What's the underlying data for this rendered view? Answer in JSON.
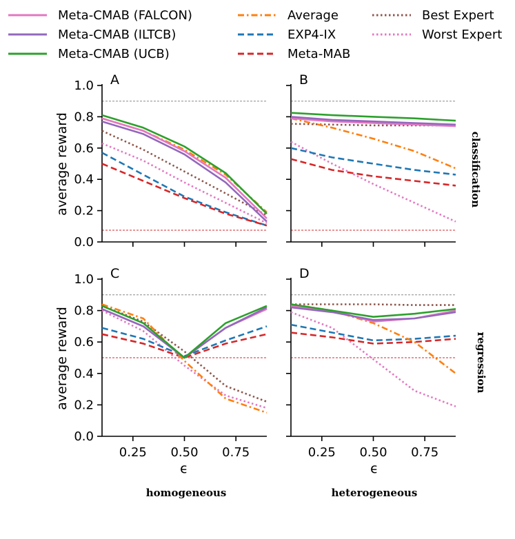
{
  "legend": {
    "items": [
      {
        "label": "Meta-CMAB (FALCON)",
        "color": "#e377c2",
        "dash": "solid"
      },
      {
        "label": "Meta-CMAB (ILTCB)",
        "color": "#9467bd",
        "dash": "solid"
      },
      {
        "label": "Meta-CMAB (UCB)",
        "color": "#2ca02c",
        "dash": "solid"
      },
      {
        "label": "Average",
        "color": "#ff7f0e",
        "dash": "dashdot"
      },
      {
        "label": "EXP4-IX",
        "color": "#1f77b4",
        "dash": "dashed"
      },
      {
        "label": "Meta-MAB",
        "color": "#d62728",
        "dash": "dashed"
      },
      {
        "label": "Best Expert",
        "color": "#8c564b",
        "dash": "dotted"
      },
      {
        "label": "Worst Expert",
        "color": "#e377c2",
        "dash": "dotted"
      }
    ]
  },
  "labels": {
    "ylabel": "average reward",
    "xlabel": "ϵ",
    "row_top": "classification",
    "row_bottom": "regression",
    "col_left": "homogeneous",
    "col_right": "heterogeneous"
  },
  "chart_data": {
    "type": "line",
    "x": [
      0.1,
      0.3,
      0.5,
      0.7,
      0.9
    ],
    "xticks": [
      "0.25",
      "0.50",
      "0.75"
    ],
    "yticks": [
      "0.0",
      "0.2",
      "0.4",
      "0.6",
      "0.8",
      "1.0"
    ],
    "ylim": [
      0,
      1
    ],
    "xlim": [
      0.1,
      0.9
    ],
    "panels": [
      {
        "letter": "A",
        "upper_ref": 0.9,
        "lower_ref": 0.075,
        "series": [
          {
            "name": "Meta-CMAB (FALCON)",
            "values": [
              0.79,
              0.71,
              0.58,
              0.41,
              0.15
            ]
          },
          {
            "name": "Meta-CMAB (ILTCB)",
            "values": [
              0.77,
              0.69,
              0.56,
              0.38,
              0.13
            ]
          },
          {
            "name": "Meta-CMAB (UCB)",
            "values": [
              0.81,
              0.73,
              0.61,
              0.44,
              0.18
            ]
          },
          {
            "name": "Average",
            "values": [
              0.79,
              0.71,
              0.59,
              0.43,
              0.19
            ]
          },
          {
            "name": "EXP4-IX",
            "values": [
              0.57,
              0.43,
              0.29,
              0.19,
              0.105
            ]
          },
          {
            "name": "Meta-MAB",
            "values": [
              0.5,
              0.39,
              0.28,
              0.18,
              0.105
            ]
          },
          {
            "name": "Best Expert",
            "values": [
              0.71,
              0.59,
              0.45,
              0.31,
              0.17
            ]
          },
          {
            "name": "Worst Expert",
            "values": [
              0.63,
              0.52,
              0.38,
              0.25,
              0.12
            ]
          }
        ]
      },
      {
        "letter": "B",
        "upper_ref": 0.9,
        "lower_ref": 0.075,
        "series": [
          {
            "name": "Meta-CMAB (FALCON)",
            "values": [
              0.79,
              0.77,
              0.76,
              0.75,
              0.74
            ]
          },
          {
            "name": "Meta-CMAB (ILTCB)",
            "values": [
              0.8,
              0.78,
              0.77,
              0.76,
              0.75
            ]
          },
          {
            "name": "Meta-CMAB (UCB)",
            "values": [
              0.825,
              0.81,
              0.8,
              0.79,
              0.775
            ]
          },
          {
            "name": "Average",
            "values": [
              0.79,
              0.73,
              0.66,
              0.58,
              0.47
            ]
          },
          {
            "name": "EXP4-IX",
            "values": [
              0.6,
              0.54,
              0.5,
              0.46,
              0.43
            ]
          },
          {
            "name": "Meta-MAB",
            "values": [
              0.53,
              0.46,
              0.42,
              0.39,
              0.36
            ]
          },
          {
            "name": "Best Expert",
            "values": [
              0.755,
              0.75,
              0.745,
              0.745,
              0.745
            ]
          },
          {
            "name": "Worst Expert",
            "values": [
              0.64,
              0.5,
              0.37,
              0.25,
              0.13
            ]
          }
        ]
      },
      {
        "letter": "C",
        "upper_ref": 0.9,
        "lower_ref": 0.5,
        "series": [
          {
            "name": "Meta-CMAB (FALCON)",
            "values": [
              0.81,
              0.7,
              0.5,
              0.69,
              0.81
            ]
          },
          {
            "name": "Meta-CMAB (ILTCB)",
            "values": [
              0.81,
              0.7,
              0.5,
              0.69,
              0.82
            ]
          },
          {
            "name": "Meta-CMAB (UCB)",
            "values": [
              0.83,
              0.72,
              0.5,
              0.72,
              0.83
            ]
          },
          {
            "name": "Average",
            "values": [
              0.84,
              0.75,
              0.48,
              0.24,
              0.15
            ]
          },
          {
            "name": "EXP4-IX",
            "values": [
              0.69,
              0.62,
              0.51,
              0.61,
              0.7
            ]
          },
          {
            "name": "Meta-MAB",
            "values": [
              0.65,
              0.59,
              0.5,
              0.59,
              0.65
            ]
          },
          {
            "name": "Best Expert",
            "values": [
              0.83,
              0.73,
              0.54,
              0.32,
              0.22
            ]
          },
          {
            "name": "Worst Expert",
            "values": [
              0.8,
              0.67,
              0.45,
              0.26,
              0.18
            ]
          }
        ]
      },
      {
        "letter": "D",
        "upper_ref": 0.9,
        "lower_ref": 0.5,
        "series": [
          {
            "name": "Meta-CMAB (FALCON)",
            "values": [
              0.83,
              0.8,
              0.73,
              0.75,
              0.8
            ]
          },
          {
            "name": "Meta-CMAB (ILTCB)",
            "values": [
              0.82,
              0.79,
              0.74,
              0.75,
              0.79
            ]
          },
          {
            "name": "Meta-CMAB (UCB)",
            "values": [
              0.84,
              0.8,
              0.76,
              0.78,
              0.81
            ]
          },
          {
            "name": "Average",
            "values": [
              0.84,
              0.8,
              0.72,
              0.6,
              0.4
            ]
          },
          {
            "name": "EXP4-IX",
            "values": [
              0.71,
              0.66,
              0.61,
              0.62,
              0.64
            ]
          },
          {
            "name": "Meta-MAB",
            "values": [
              0.66,
              0.63,
              0.59,
              0.6,
              0.62
            ]
          },
          {
            "name": "Best Expert",
            "values": [
              0.84,
              0.84,
              0.84,
              0.835,
              0.835
            ]
          },
          {
            "name": "Worst Expert",
            "values": [
              0.79,
              0.69,
              0.49,
              0.29,
              0.19
            ]
          }
        ]
      }
    ]
  }
}
